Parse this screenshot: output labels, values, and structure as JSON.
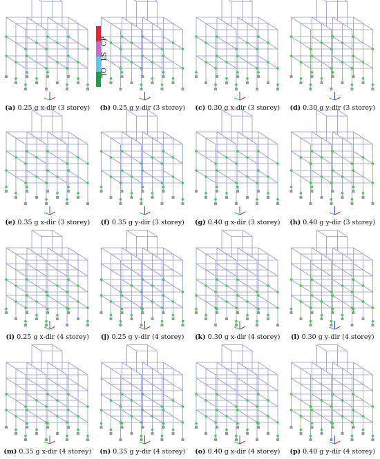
{
  "legend": {
    "colors": [
      "#e8232a",
      "#c86cc8",
      "#5bc8e8",
      "#1a9e4a"
    ],
    "labels": [
      "CP",
      "LS",
      "IO"
    ]
  },
  "panels": [
    {
      "letter": "(a)",
      "text": "0.25 g x-dir (3 storey)"
    },
    {
      "letter": "(b)",
      "text": "0.25 g y-dir (3 storey)"
    },
    {
      "letter": "(c)",
      "text": "0.30 g x-dir (3 storey)"
    },
    {
      "letter": "(d)",
      "text": "0.30 g y-dir (3 storey)"
    },
    {
      "letter": "(e)",
      "text": "0.35 g x-dir (3 storey)"
    },
    {
      "letter": "(f)",
      "text": "0.35 g y-dir (3 storey)"
    },
    {
      "letter": "(g)",
      "text": "0.40 g x-dir (3 storey)"
    },
    {
      "letter": "(h)",
      "text": "0.40 g y-dir (3 storey)"
    },
    {
      "letter": "(i)",
      "text": "0.25 g x-dir (4 storey)"
    },
    {
      "letter": "(j)",
      "text": "0.25 g y-dir (4 storey)"
    },
    {
      "letter": "(k)",
      "text": "0.30 g x-dir (4 storey)"
    },
    {
      "letter": "(l)",
      "text": "0.30 g y-dir (4 storey)"
    },
    {
      "letter": "(m)",
      "text": "0.35 g x-dir (4 storey)"
    },
    {
      "letter": "(n)",
      "text": "0.35 g y-dir (4 storey)"
    },
    {
      "letter": "(o)",
      "text": "0.40 g x-dir (4 storey)"
    },
    {
      "letter": "(p)",
      "text": "0.40 g y-dir (4 storey)"
    }
  ]
}
